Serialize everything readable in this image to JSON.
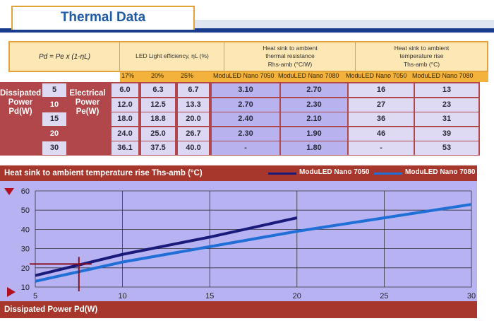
{
  "header": {
    "title": "Thermal Data"
  },
  "table": {
    "formula": "Pd = Pe x (1-ηL)",
    "col_headers": {
      "efficiency": "LED Light efficiency, ηL (%)",
      "resistance_line1": "Heat sink to ambient",
      "resistance_line2": "thermal resistance",
      "resistance_line3": "Rhs-amb (°C/W)",
      "rise_line1": "Heat sink to ambient",
      "rise_line2": "temperature rise",
      "rise_line3": "Ths-amb (°C)"
    },
    "efficiencies": [
      "17%",
      "20%",
      "25%"
    ],
    "subheaders": [
      "ModuLED Nano 7050",
      "ModuLED Nano 7080",
      "ModuLED Nano 7050",
      "ModuLED Nano 7080"
    ],
    "dissipated_label": "Dissipated Power Pd(W)",
    "electrical_label": "Electrical Power Pe(W)",
    "rows": [
      {
        "pd": "5",
        "pe": [
          "6.0",
          "6.3",
          "6.7"
        ],
        "r7050": "3.10",
        "r7080": "2.70",
        "t7050": "16",
        "t7080": "13"
      },
      {
        "pd": "10",
        "pe": [
          "12.0",
          "12.5",
          "13.3"
        ],
        "r7050": "2.70",
        "r7080": "2.30",
        "t7050": "27",
        "t7080": "23"
      },
      {
        "pd": "15",
        "pe": [
          "18.0",
          "18.8",
          "20.0"
        ],
        "r7050": "2.40",
        "r7080": "2.10",
        "t7050": "36",
        "t7080": "31"
      },
      {
        "pd": "20",
        "pe": [
          "24.0",
          "25.0",
          "26.7"
        ],
        "r7050": "2.30",
        "r7080": "1.90",
        "t7050": "46",
        "t7080": "39"
      },
      {
        "pd": "30",
        "pe": [
          "36.1",
          "37.5",
          "40.0"
        ],
        "r7050": "-",
        "r7080": "1.80",
        "t7050": "-",
        "t7080": "53"
      }
    ]
  },
  "chart_data": {
    "type": "line",
    "title": "Heat sink to ambient temperature rise Ths-amb (°C)",
    "xlabel": "Dissipated Power Pd(W)",
    "ylabel": "",
    "xlim": [
      5,
      30
    ],
    "ylim": [
      10,
      60
    ],
    "xticks": [
      5,
      10,
      15,
      20,
      25,
      30
    ],
    "yticks": [
      10,
      20,
      30,
      40,
      50,
      60
    ],
    "grid": true,
    "legend_position": "top-right",
    "series": [
      {
        "name": "ModuLED Nano 7050",
        "color": "#1a1a7a",
        "x": [
          5,
          10,
          15,
          20
        ],
        "y": [
          16,
          27,
          36,
          46
        ]
      },
      {
        "name": "ModuLED Nano 7080",
        "color": "#1f6fd6",
        "x": [
          5,
          10,
          15,
          20,
          30
        ],
        "y": [
          13,
          23,
          31,
          39,
          53
        ]
      }
    ],
    "annotation": {
      "x": 7.5,
      "y": 22,
      "color": "#8a1020"
    }
  }
}
